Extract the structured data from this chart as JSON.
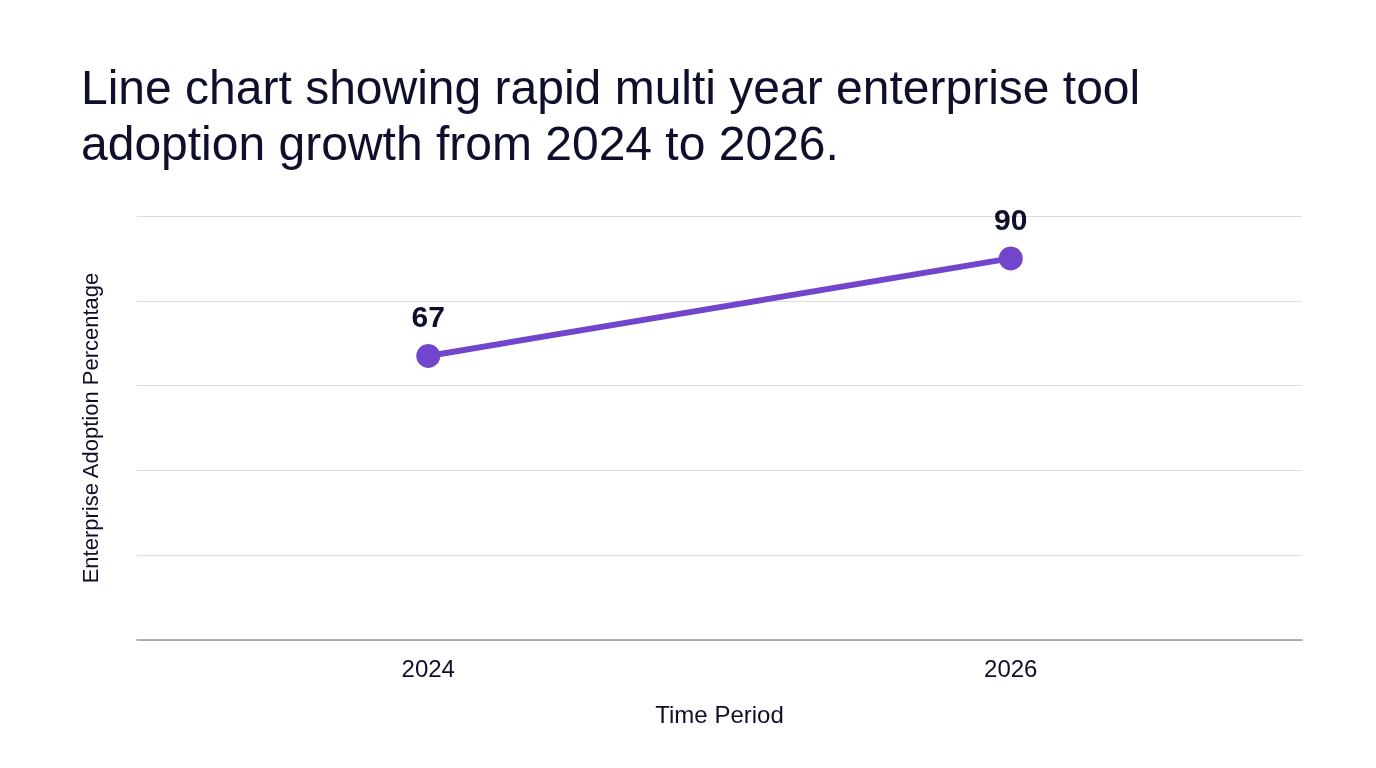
{
  "chart_data": {
    "type": "line",
    "title": "Line chart showing rapid multi year enterprise tool adoption growth from 2024 to 2026.",
    "xlabel": "Time Period",
    "ylabel": "Enterprise Adoption Percentage",
    "categories": [
      "2024",
      "2026"
    ],
    "series": [
      {
        "color": "#7146cc",
        "values": [
          67,
          90
        ]
      }
    ],
    "ylim": [
      0,
      100
    ],
    "yticks": [
      {
        "value": 0,
        "label": null
      },
      {
        "value": 20,
        "label": null
      },
      {
        "value": 40,
        "label": null
      },
      {
        "value": 60,
        "label": null
      },
      {
        "value": 80,
        "label": null
      },
      {
        "value": 100,
        "label": null
      }
    ],
    "tick_labels": "x",
    "grid": "y",
    "data_labels": true,
    "marker": "circle",
    "line_style": "solid"
  }
}
